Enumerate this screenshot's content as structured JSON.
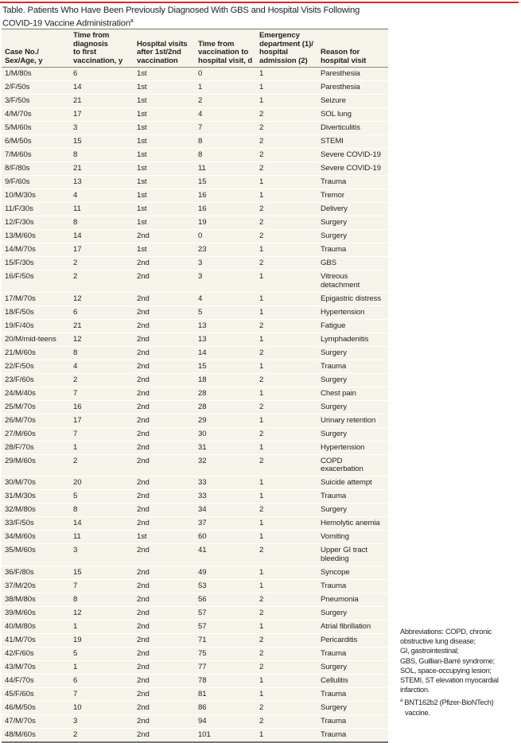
{
  "title": {
    "text": "Table. Patients Who Have Been Previously Diagnosed With GBS and Hospital Visits Following COVID-19 Vaccine Administration",
    "marker": "a"
  },
  "accent_color": "#e0242b",
  "headers": [
    "Case No./ Sex/Age, y",
    "Time from diagnosis to first vaccination, y",
    "Hospital visits after 1st/2nd vaccination",
    "Time from vaccination to hospital visit, d",
    "Emergency department (1)/ hospital admission (2)",
    "Reason for hospital visit"
  ],
  "rows": [
    [
      "1/M/80s",
      "6",
      "1st",
      "0",
      "1",
      "Paresthesia"
    ],
    [
      "2/F/50s",
      "14",
      "1st",
      "1",
      "1",
      "Paresthesia"
    ],
    [
      "3/F/50s",
      "21",
      "1st",
      "2",
      "1",
      "Seizure"
    ],
    [
      "4/M/70s",
      "17",
      "1st",
      "4",
      "2",
      "SOL lung"
    ],
    [
      "5/M/60s",
      "3",
      "1st",
      "7",
      "2",
      "Diverticulitis"
    ],
    [
      "6/M/50s",
      "15",
      "1st",
      "8",
      "2",
      "STEMI"
    ],
    [
      "7/M/60s",
      "8",
      "1st",
      "8",
      "2",
      "Severe COVID-19"
    ],
    [
      "8/F/80s",
      "21",
      "1st",
      "11",
      "2",
      "Severe COVID-19"
    ],
    [
      "9/F/60s",
      "13",
      "1st",
      "15",
      "1",
      "Trauma"
    ],
    [
      "10/M/30s",
      "4",
      "1st",
      "16",
      "1",
      "Tremor"
    ],
    [
      "11/F/30s",
      "11",
      "1st",
      "16",
      "2",
      "Delivery"
    ],
    [
      "12/F/30s",
      "8",
      "1st",
      "19",
      "2",
      "Surgery"
    ],
    [
      "13/M/60s",
      "14",
      "2nd",
      "0",
      "2",
      "Surgery"
    ],
    [
      "14/M/70s",
      "17",
      "1st",
      "23",
      "1",
      "Trauma"
    ],
    [
      "15/F/30s",
      "2",
      "2nd",
      "3",
      "2",
      "GBS"
    ],
    [
      "16/F/50s",
      "2",
      "2nd",
      "3",
      "1",
      "Vitreous detachment"
    ],
    [
      "17/M/70s",
      "12",
      "2nd",
      "4",
      "1",
      "Epigastric distress"
    ],
    [
      "18/F/50s",
      "6",
      "2nd",
      "5",
      "1",
      "Hypertension"
    ],
    [
      "19/F/40s",
      "21",
      "2nd",
      "13",
      "2",
      "Fatigue"
    ],
    [
      "20/M/mid-teens",
      "12",
      "2nd",
      "13",
      "1",
      "Lymphadenitis"
    ],
    [
      "21/M/60s",
      "8",
      "2nd",
      "14",
      "2",
      "Surgery"
    ],
    [
      "22/F/50s",
      "4",
      "2nd",
      "15",
      "1",
      "Trauma"
    ],
    [
      "23/F/60s",
      "2",
      "2nd",
      "18",
      "2",
      "Surgery"
    ],
    [
      "24/M/40s",
      "7",
      "2nd",
      "28",
      "1",
      "Chest pain"
    ],
    [
      "25/M/70s",
      "16",
      "2nd",
      "28",
      "2",
      "Surgery"
    ],
    [
      "26/M/70s",
      "17",
      "2nd",
      "29",
      "1",
      "Urinary retention"
    ],
    [
      "27/M/60s",
      "7",
      "2nd",
      "30",
      "2",
      "Surgery"
    ],
    [
      "28/F/70s",
      "1",
      "2nd",
      "31",
      "1",
      "Hypertension"
    ],
    [
      "29/M/60s",
      "2",
      "2nd",
      "32",
      "2",
      "COPD exacerbation"
    ],
    [
      "30/M/70s",
      "20",
      "2nd",
      "33",
      "1",
      "Suicide attempt"
    ],
    [
      "31/M/30s",
      "5",
      "2nd",
      "33",
      "1",
      "Trauma"
    ],
    [
      "32/M/80s",
      "8",
      "2nd",
      "34",
      "2",
      "Surgery"
    ],
    [
      "33/F/50s",
      "14",
      "2nd",
      "37",
      "1",
      "Hemolytic anemia"
    ],
    [
      "34/M/60s",
      "11",
      "1st",
      "60",
      "1",
      "Vomiting"
    ],
    [
      "35/M/60s",
      "3",
      "2nd",
      "41",
      "2",
      "Upper GI tract bleeding"
    ],
    [
      "36/F/80s",
      "15",
      "2nd",
      "49",
      "1",
      "Syncope"
    ],
    [
      "37/M/20s",
      "7",
      "2nd",
      "53",
      "1",
      "Trauma"
    ],
    [
      "38/M/80s",
      "8",
      "2nd",
      "56",
      "2",
      "Pneumonia"
    ],
    [
      "39/M/60s",
      "12",
      "2nd",
      "57",
      "2",
      "Surgery"
    ],
    [
      "40/M/80s",
      "1",
      "2nd",
      "57",
      "1",
      "Atrial fibrillation"
    ],
    [
      "41/M/70s",
      "19",
      "2nd",
      "71",
      "2",
      "Pericarditis"
    ],
    [
      "42/F/60s",
      "5",
      "2nd",
      "75",
      "2",
      "Trauma"
    ],
    [
      "43/M/70s",
      "1",
      "2nd",
      "77",
      "2",
      "Surgery"
    ],
    [
      "44/F/70s",
      "6",
      "2nd",
      "78",
      "1",
      "Cellulitis"
    ],
    [
      "45/F/60s",
      "7",
      "2nd",
      "81",
      "1",
      "Trauma"
    ],
    [
      "46/M/50s",
      "10",
      "2nd",
      "86",
      "2",
      "Surgery"
    ],
    [
      "47/M/70s",
      "3",
      "2nd",
      "94",
      "2",
      "Trauma"
    ],
    [
      "48/M/60s",
      "2",
      "2nd",
      "101",
      "1",
      "Trauma"
    ]
  ],
  "notes": {
    "abbreviations": [
      "Abbreviations: COPD, chronic obstructive lung disease;",
      "GI, gastrointestinal;",
      "GBS, Guillian-Barré syndrome;",
      "SOL, space-occupying lesion;",
      "STEMI, ST elevation myocardial infarction."
    ],
    "footnote_marker": "a",
    "footnote": "BNT162b2 (Pfizer-BioNTech) vaccine."
  }
}
